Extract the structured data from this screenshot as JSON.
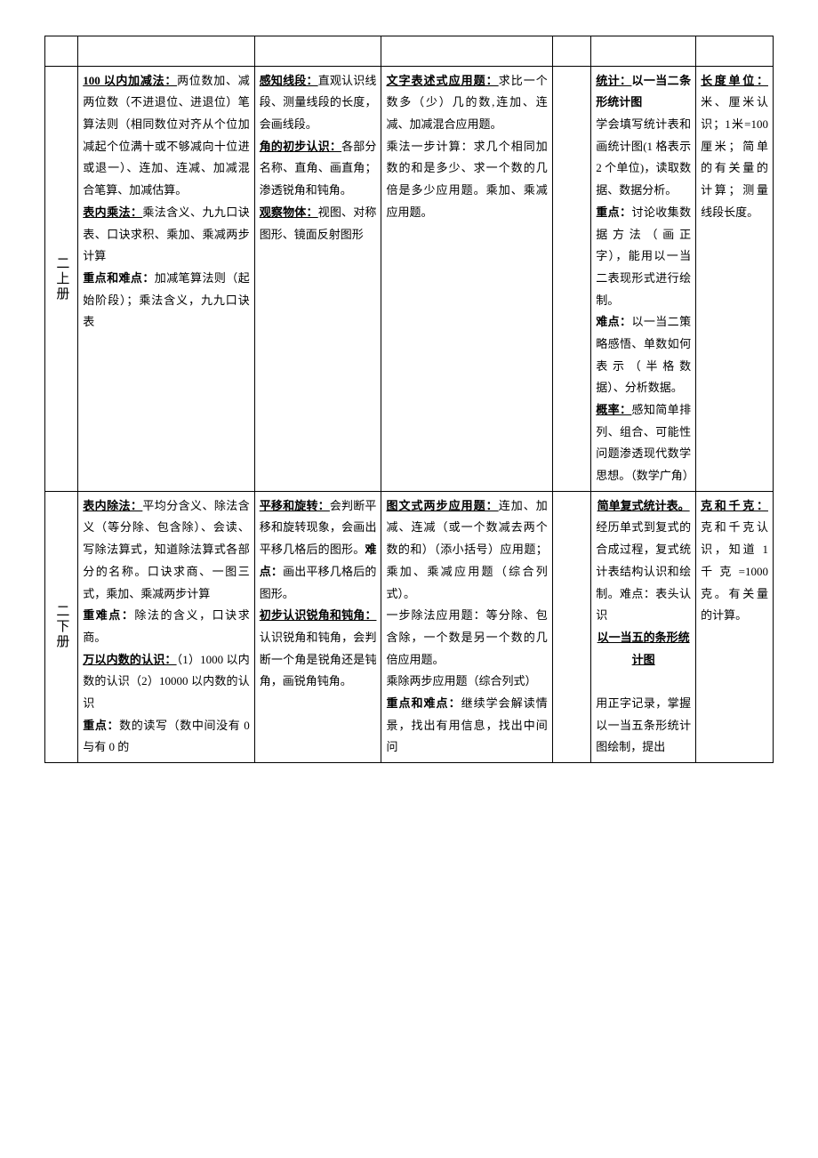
{
  "rows": [
    {
      "label": "二上册",
      "col2": {
        "parts": [
          {
            "b": true,
            "u": true,
            "t": "100 以内加减法："
          },
          {
            "t": "两位数加、减两位数（不进退位、进退位）笔算法则（相同数位对齐从个位加减起个位满十或不够减向十位进或退一）、连加、连减、加减混合笔算、加减估算。"
          },
          {
            "br": true
          },
          {
            "b": true,
            "u": true,
            "t": "表内乘法："
          },
          {
            "t": "乘法含义、九九口诀表、口诀求积、乘加、乘减两步计算"
          },
          {
            "br": true
          },
          {
            "b": true,
            "t": "重点和难点："
          },
          {
            "t": "加减笔算法则（起始阶段）；乘法含义，九九口诀表"
          }
        ]
      },
      "col3": {
        "parts": [
          {
            "b": true,
            "u": true,
            "t": "感知线段："
          },
          {
            "t": "直观认识线段、测量线段的长度，会画线段。"
          },
          {
            "br": true
          },
          {
            "b": true,
            "u": true,
            "t": "角的初步认识："
          },
          {
            "t": "各部分名称、直角、画直角；渗透锐角和钝角。"
          },
          {
            "br": true
          },
          {
            "b": true,
            "u": true,
            "t": "观察物体："
          },
          {
            "t": "视图、对称图形、镜面反射图形"
          }
        ]
      },
      "col4": {
        "parts": [
          {
            "b": true,
            "u": true,
            "t": "文字表述式应用题："
          },
          {
            "t": "求比一个数多（少）几的数,连加、连减、加减混合应用题。"
          },
          {
            "br": true
          },
          {
            "t": "乘法一步计算：求几个相同加数的和是多少、求一个数的几倍是多少应用题。乘加、乘减应用题。"
          }
        ]
      },
      "col5": {
        "parts": []
      },
      "col6": {
        "parts": [
          {
            "b": true,
            "u": true,
            "t": "统计："
          },
          {
            "b": true,
            "t": "以一当二条形统计图"
          },
          {
            "br": true
          },
          {
            "t": "学会填写统计表和画统计图(1 格表示2 个单位)，读取数据、数据分析。"
          },
          {
            "br": true
          },
          {
            "b": true,
            "t": "重点："
          },
          {
            "t": "讨论收集数据方法（画正字），能用以一当二表现形式进行绘制。"
          },
          {
            "br": true
          },
          {
            "b": true,
            "t": "难点："
          },
          {
            "t": "以一当二策略感悟、单数如何表示（半格数据）、分析数据。"
          },
          {
            "br": true
          },
          {
            "b": true,
            "u": true,
            "t": "概率："
          },
          {
            "t": "感知简单排列、组合、可能性问题渗透现代数学思想。（数学广角）"
          }
        ]
      },
      "col7": {
        "parts": [
          {
            "b": true,
            "u": true,
            "t": "长度单位："
          },
          {
            "t": "米、厘米认识；1米=100 厘米；简单的有关量的计算；测量线段长度。"
          }
        ]
      }
    },
    {
      "label": "二下册",
      "col2": {
        "parts": [
          {
            "b": true,
            "u": true,
            "t": "表内除法："
          },
          {
            "t": "平均分含义、除法含义（等分除、包含除）、会读、写除法算式，知道除法算式各部分的名称。口诀求商、一图三式，乘加、乘减两步计算"
          },
          {
            "br": true
          },
          {
            "b": true,
            "t": "重难点："
          },
          {
            "t": "除法的含义，口诀求商。"
          },
          {
            "br": true
          },
          {
            "b": true,
            "u": true,
            "t": "万以内数的认识："
          },
          {
            "t": "（1）1000 以内数的认识（2）10000 以内数的认识"
          },
          {
            "br": true
          },
          {
            "b": true,
            "t": "重点："
          },
          {
            "t": "数的读写（数中间没有 0 与有 0 的"
          }
        ]
      },
      "col3": {
        "parts": [
          {
            "b": true,
            "u": true,
            "t": "平移和旋转："
          },
          {
            "t": "会判断平移和旋转现象，会画出平移几格后的图形。"
          },
          {
            "b": true,
            "t": "难点："
          },
          {
            "t": "画出平移几格后的图形。"
          },
          {
            "br": true
          },
          {
            "b": true,
            "u": true,
            "t": "初步认识锐角和钝角："
          },
          {
            "t": "认识锐角和钝角，会判断一个角是锐角还是钝角，画锐角钝角。"
          }
        ]
      },
      "col4": {
        "parts": [
          {
            "b": true,
            "u": true,
            "t": "图文式两步应用题："
          },
          {
            "t": "连加、加减、连减（或一个数减去两个数的和）（添小括号）应用题；乘加、乘减应用题（综合列式）。"
          },
          {
            "br": true
          },
          {
            "t": "一步除法应用题：等分除、包含除，一个数是另一个数的几倍应用题。"
          },
          {
            "br": true
          },
          {
            "t": "乘除两步应用题（综合列式）"
          },
          {
            "br": true
          },
          {
            "b": true,
            "t": "重点和难点："
          },
          {
            "t": "继续学会解读情景，找出有用信息，找出中间问"
          }
        ]
      },
      "col5": {
        "parts": []
      },
      "col6": {
        "parts": [
          {
            "b": true,
            "u": true,
            "center": true,
            "t": "简单复式统计表。"
          },
          {
            "t": "经历单式到复式的合成过程，复式统计表结构认识和绘制。难点：表头认识"
          },
          {
            "br": true
          },
          {
            "b": true,
            "u": true,
            "center": true,
            "t": "以一当五的条形统计图"
          },
          {
            "br": true
          },
          {
            "t": "用正字记录，掌握以一当五条形统计图绘制，提出"
          }
        ]
      },
      "col7": {
        "parts": [
          {
            "b": true,
            "u": true,
            "t": "克和千克："
          },
          {
            "t": "克和千克认识，知道 1 千克=1000克。有关量的计算。"
          }
        ]
      }
    }
  ]
}
